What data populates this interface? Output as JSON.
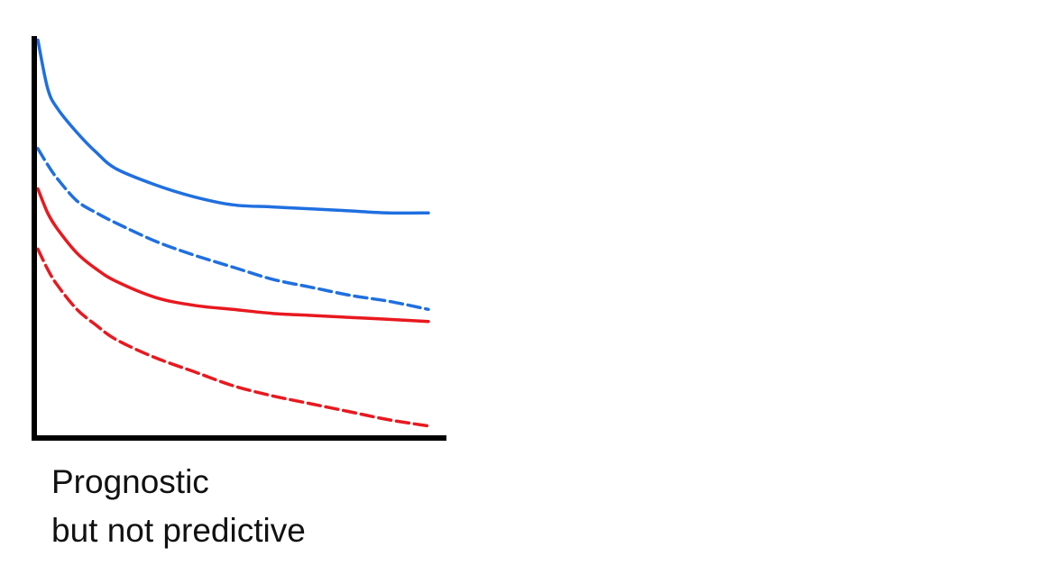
{
  "colors": {
    "axis": "#000000",
    "blue": "#1f6fe0",
    "red": "#e8191f"
  },
  "caption": {
    "line1": "Prognostic",
    "line2": "but not predictive"
  },
  "chart_data": {
    "type": "line",
    "title": "",
    "xlabel": "",
    "ylabel": "",
    "xlim": [
      0,
      10
    ],
    "ylim": [
      0,
      1
    ],
    "grid": false,
    "legend": "none",
    "x": [
      0,
      0.25,
      0.5,
      1,
      1.5,
      2,
      3,
      4,
      5,
      6,
      7,
      8,
      9,
      10
    ],
    "series": [
      {
        "color": "#1f6fe0",
        "style": "solid",
        "values": [
          0.99,
          0.87,
          0.82,
          0.76,
          0.71,
          0.67,
          0.63,
          0.6,
          0.58,
          0.575,
          0.57,
          0.565,
          0.56,
          0.56
        ]
      },
      {
        "color": "#1f6fe0",
        "style": "dashed",
        "values": [
          0.72,
          0.68,
          0.645,
          0.59,
          0.56,
          0.535,
          0.49,
          0.455,
          0.425,
          0.395,
          0.375,
          0.355,
          0.34,
          0.32
        ]
      },
      {
        "color": "#e8191f",
        "style": "solid",
        "values": [
          0.62,
          0.56,
          0.52,
          0.46,
          0.42,
          0.39,
          0.35,
          0.33,
          0.32,
          0.31,
          0.305,
          0.3,
          0.295,
          0.29
        ]
      },
      {
        "color": "#e8191f",
        "style": "dashed",
        "values": [
          0.47,
          0.42,
          0.38,
          0.32,
          0.28,
          0.245,
          0.2,
          0.165,
          0.13,
          0.105,
          0.085,
          0.065,
          0.045,
          0.03
        ]
      }
    ]
  }
}
